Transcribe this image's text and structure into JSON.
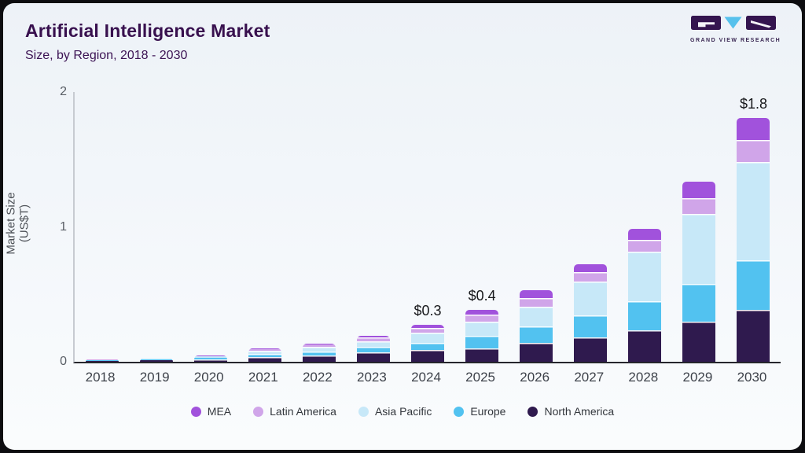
{
  "header": {
    "title": "Artificial Intelligence Market",
    "subtitle": "Size, by Region, 2018 - 2030",
    "logo_caption": "GRAND VIEW RESEARCH"
  },
  "colors": {
    "card_background": "#f2f6fa",
    "frame": "#0d0d10",
    "title_text": "#38104e",
    "axis_x": "#26262c",
    "axis_y": "#c7cbd1",
    "mea": "#a152dc",
    "latin_america": "#d0a5e9",
    "asia_pacific": "#c7e8f8",
    "europe": "#52c2f0",
    "north_america": "#2f1a4e",
    "logo_dark": "#34154f",
    "logo_triangle": "#57c1ec"
  },
  "chart_data": {
    "type": "bar",
    "stacked": true,
    "title": "Artificial Intelligence Market",
    "subtitle": "Size, by Region, 2018 - 2030",
    "xlabel": "",
    "ylabel": "Market Size (US$T)",
    "ylim": [
      0,
      2
    ],
    "yticks": [
      0,
      1,
      2
    ],
    "grid": false,
    "legend_position": "bottom",
    "categories": [
      "2018",
      "2019",
      "2020",
      "2021",
      "2022",
      "2023",
      "2024",
      "2025",
      "2026",
      "2027",
      "2028",
      "2029",
      "2030"
    ],
    "series": [
      {
        "name": "North America",
        "color": "#2f1a4e",
        "values": [
          0.008,
          0.012,
          0.02,
          0.035,
          0.048,
          0.068,
          0.09,
          0.1,
          0.14,
          0.18,
          0.235,
          0.3,
          0.385
        ]
      },
      {
        "name": "Europe",
        "color": "#52c2f0",
        "values": [
          0.003,
          0.005,
          0.009,
          0.025,
          0.03,
          0.045,
          0.05,
          0.095,
          0.12,
          0.165,
          0.215,
          0.275,
          0.37
        ]
      },
      {
        "name": "Asia Pacific",
        "color": "#c7e8f8",
        "values": [
          0.003,
          0.005,
          0.01,
          0.023,
          0.035,
          0.039,
          0.075,
          0.105,
          0.15,
          0.248,
          0.365,
          0.52,
          0.725
        ]
      },
      {
        "name": "Latin America",
        "color": "#d0a5e9",
        "values": [
          0.002,
          0.002,
          0.004,
          0.01,
          0.016,
          0.027,
          0.035,
          0.05,
          0.06,
          0.072,
          0.09,
          0.12,
          0.165
        ]
      },
      {
        "name": "MEA",
        "color": "#a152dc",
        "values": [
          0.001,
          0.001,
          0.002,
          0.006,
          0.008,
          0.016,
          0.025,
          0.035,
          0.06,
          0.058,
          0.08,
          0.12,
          0.16
        ]
      }
    ],
    "bar_labels": [
      "",
      "",
      "",
      "",
      "",
      "",
      "$0.3",
      "$0.4",
      "",
      "",
      "",
      "",
      "$1.8"
    ],
    "totals_approx": [
      0.017,
      0.025,
      0.045,
      0.099,
      0.137,
      0.195,
      0.275,
      0.385,
      0.53,
      0.723,
      0.985,
      1.335,
      1.805
    ],
    "legend": [
      {
        "label": "MEA",
        "color": "#a152dc"
      },
      {
        "label": "Latin America",
        "color": "#d0a5e9"
      },
      {
        "label": "Asia Pacific",
        "color": "#c7e8f8"
      },
      {
        "label": "Europe",
        "color": "#52c2f0"
      },
      {
        "label": "North America",
        "color": "#2f1a4e"
      }
    ]
  }
}
